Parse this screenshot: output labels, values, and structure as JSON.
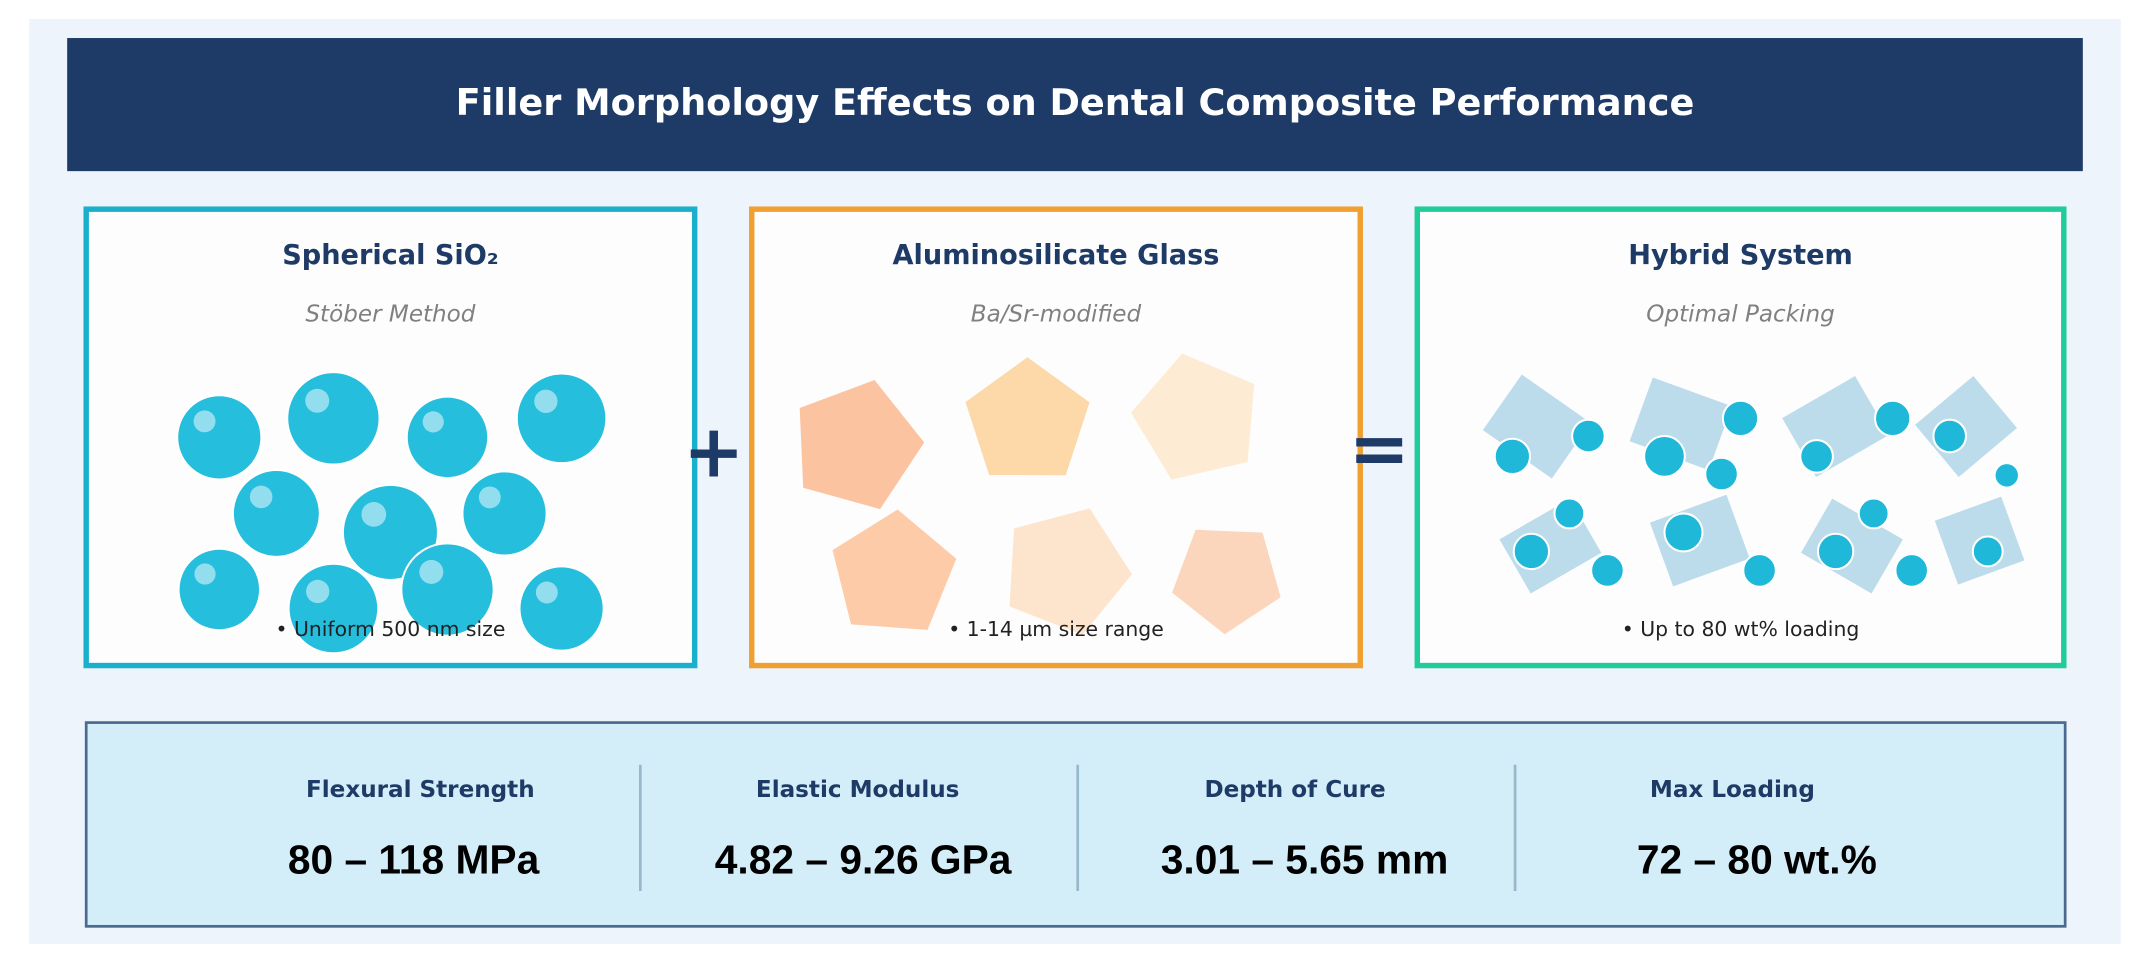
{
  "header": {
    "title": "Filler Morphology Effects on Dental Composite Performance"
  },
  "panels": [
    {
      "title": "Spherical SiO₂",
      "subtitle": "Stöber Method",
      "note": "• Uniform 500 nm size"
    },
    {
      "title": "Aluminosilicate Glass",
      "subtitle": "Ba/Sr-modified",
      "note": "• 1-14 µm size range"
    },
    {
      "title": "Hybrid System",
      "subtitle": "Optimal Packing",
      "note": "• Up to 80 wt% loading"
    }
  ],
  "operators": [
    "+",
    "="
  ],
  "metrics": [
    {
      "label": "Flexural Strength",
      "value": "80 – 118 MPa"
    },
    {
      "label": "Elastic Modulus",
      "value": "4.82 – 9.26 GPa"
    },
    {
      "label": "Depth of Cure",
      "value": "3.01 – 5.65 mm"
    },
    {
      "label": "Max Loading",
      "value": "72 – 80 wt.%"
    }
  ]
}
